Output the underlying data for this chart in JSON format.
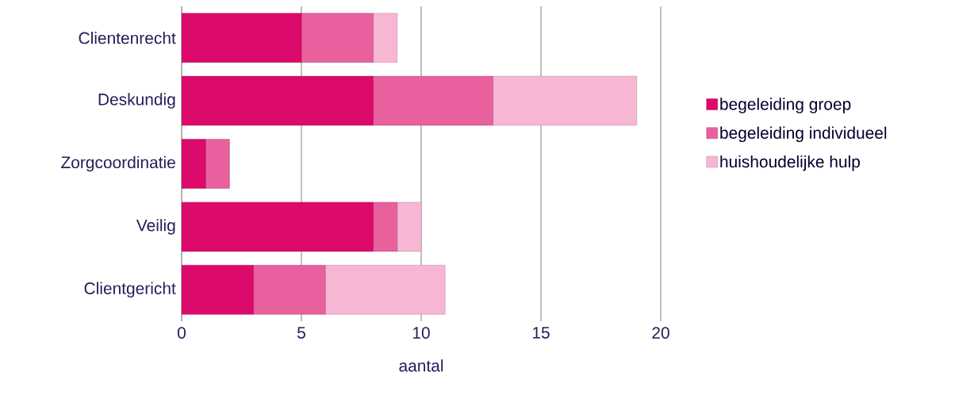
{
  "chart_data": {
    "type": "bar",
    "orientation": "horizontal",
    "stacked": true,
    "xlabel": "aantal",
    "categories": [
      "Clientenrecht",
      "Deskundig",
      "Zorgcoordinatie",
      "Veilig",
      "Clientgericht"
    ],
    "series": [
      {
        "name": "begeleiding groep",
        "color": "#dc0a6a",
        "values": [
          5,
          8,
          1,
          8,
          3
        ]
      },
      {
        "name": "begeleiding individueel",
        "color": "#e8609e",
        "values": [
          3,
          5,
          1,
          1,
          3
        ]
      },
      {
        "name": "huishoudelijke hulp",
        "color": "#f6b6d4",
        "values": [
          1,
          6,
          0,
          1,
          5
        ]
      }
    ],
    "xlim": [
      0,
      20
    ],
    "xticks": [
      0,
      5,
      10,
      15,
      20
    ],
    "grid": "x",
    "legend": "right"
  }
}
